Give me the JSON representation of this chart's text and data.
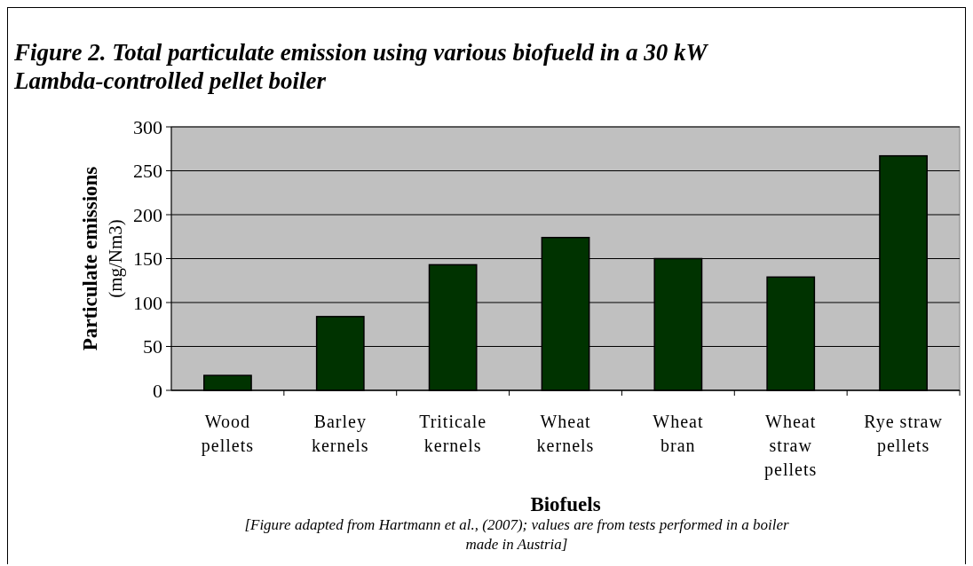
{
  "chart_data": {
    "type": "bar",
    "title": "Figure 2. Total particulate emission using various biofueld in a 30 kW Lambda-controlled pellet boiler",
    "xlabel": "Biofuels",
    "ylabel": "Particulate emissions (mg/Nm3)",
    "categories": [
      "Wood pellets",
      "Barley kernels",
      "Triticale kernels",
      "Wheat kernels",
      "Wheat bran",
      "Wheat straw pellets",
      "Rye straw pellets"
    ],
    "values": [
      17,
      84,
      143,
      174,
      150,
      129,
      267
    ],
    "color": "#003300",
    "ylim": [
      0,
      300
    ],
    "yticks": [
      0,
      50,
      100,
      150,
      200,
      250,
      300
    ],
    "grid": "y",
    "annotations": [
      "[Figure adapted from Hartmann et al., (2007); values are from tests performed in a boiler made in Austria]"
    ]
  }
}
